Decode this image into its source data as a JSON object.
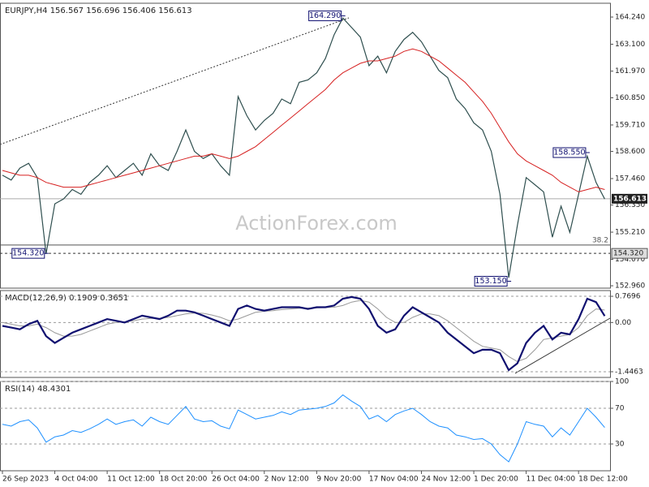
{
  "watermark": "ActionForex.com",
  "chart_data": [
    {
      "type": "line",
      "title": "EURJPY,H4  156.567 156.696 156.406 156.613",
      "ylim": [
        152.86,
        164.82
      ],
      "yticks": [
        {
          "value": 164.24,
          "label": "164.240"
        },
        {
          "value": 163.1,
          "label": "163.100"
        },
        {
          "value": 161.97,
          "label": "161.970"
        },
        {
          "value": 160.85,
          "label": "160.850"
        },
        {
          "value": 159.71,
          "label": "159.710"
        },
        {
          "value": 158.6,
          "label": "158.600"
        },
        {
          "value": 157.46,
          "label": "157.460"
        },
        {
          "value": 156.35,
          "label": "156.350"
        },
        {
          "value": 155.21,
          "label": "155.210"
        },
        {
          "value": 154.07,
          "label": "154.070"
        },
        {
          "value": 152.96,
          "label": "152.960"
        }
      ],
      "grid": false,
      "series": [
        {
          "color": "#2f4f4f",
          "width": 1.2,
          "values": [
            157.6,
            157.4,
            157.9,
            158.1,
            157.5,
            154.3,
            156.4,
            156.6,
            157.0,
            156.8,
            157.3,
            157.6,
            158.0,
            157.5,
            157.8,
            158.1,
            157.6,
            158.5,
            158.0,
            157.8,
            158.6,
            159.5,
            158.6,
            158.3,
            158.5,
            158.0,
            157.6,
            160.9,
            160.1,
            159.5,
            159.9,
            160.2,
            160.8,
            160.6,
            161.5,
            161.6,
            161.9,
            162.5,
            163.5,
            164.2,
            163.8,
            163.4,
            162.2,
            162.6,
            161.9,
            162.8,
            163.3,
            163.6,
            163.2,
            162.6,
            162.0,
            161.7,
            160.8,
            160.4,
            159.8,
            159.5,
            158.6,
            156.8,
            153.3,
            155.5,
            157.5,
            157.2,
            156.9,
            155.0,
            156.3,
            155.2,
            156.8,
            158.4,
            157.3,
            156.6
          ]
        },
        {
          "color": "#d62020",
          "width": 1,
          "values": [
            157.8,
            157.7,
            157.6,
            157.6,
            157.5,
            157.3,
            157.2,
            157.1,
            157.1,
            157.1,
            157.2,
            157.3,
            157.4,
            157.5,
            157.6,
            157.7,
            157.8,
            157.9,
            158.0,
            158.1,
            158.2,
            158.3,
            158.4,
            158.4,
            158.5,
            158.4,
            158.3,
            158.4,
            158.6,
            158.8,
            159.1,
            159.4,
            159.7,
            160.0,
            160.3,
            160.6,
            160.9,
            161.2,
            161.6,
            161.9,
            162.1,
            162.3,
            162.4,
            162.4,
            162.5,
            162.6,
            162.8,
            162.9,
            162.8,
            162.6,
            162.4,
            162.1,
            161.8,
            161.5,
            161.1,
            160.7,
            160.2,
            159.6,
            159.0,
            158.5,
            158.2,
            158.0,
            157.8,
            157.6,
            157.3,
            157.1,
            156.9,
            157.0,
            157.1,
            157.0
          ]
        }
      ],
      "annotations": [
        {
          "x": 39,
          "value": 164.29,
          "label": "164.290"
        },
        {
          "x": 5,
          "value": 154.32,
          "label": "154.320"
        },
        {
          "x": 58,
          "value": 153.15,
          "label": "153.150"
        },
        {
          "x": 67,
          "value": 158.55,
          "label": "158.550"
        }
      ],
      "levels": [
        {
          "value": 156.613,
          "label": "156.613",
          "style": "current"
        },
        {
          "value": 154.67,
          "label": "38.2",
          "style": "fib"
        },
        {
          "value": 154.32,
          "label": "154.320",
          "style": "dashed"
        }
      ]
    },
    {
      "type": "line",
      "title": "MACD(12,26,9) 0.1909 0.3651",
      "ylim": [
        -1.614,
        0.938
      ],
      "yticks": [
        0.7696,
        {
          "value": 0,
          "label": "0.00"
        },
        -1.4463
      ],
      "grid": true,
      "series": [
        {
          "color": "#999999",
          "width": 1,
          "values": [
            0,
            -0.05,
            -0.1,
            -0.1,
            -0.05,
            -0.15,
            -0.3,
            -0.4,
            -0.4,
            -0.35,
            -0.25,
            -0.15,
            -0.05,
            0.0,
            0.02,
            0.05,
            0.1,
            0.12,
            0.12,
            0.15,
            0.2,
            0.25,
            0.28,
            0.27,
            0.22,
            0.15,
            0.05,
            0.1,
            0.2,
            0.3,
            0.33,
            0.35,
            0.38,
            0.4,
            0.42,
            0.42,
            0.43,
            0.44,
            0.45,
            0.5,
            0.6,
            0.65,
            0.6,
            0.4,
            0.15,
            0.0,
            0.0,
            0.15,
            0.25,
            0.25,
            0.2,
            0.05,
            -0.15,
            -0.35,
            -0.55,
            -0.7,
            -0.75,
            -0.8,
            -1.0,
            -1.15,
            -1.05,
            -0.8,
            -0.5,
            -0.45,
            -0.4,
            -0.35,
            -0.15,
            0.2,
            0.4,
            0.3651
          ]
        },
        {
          "color": "#101070",
          "width": 2.2,
          "values": [
            -0.1,
            -0.15,
            -0.2,
            -0.05,
            0.05,
            -0.4,
            -0.6,
            -0.45,
            -0.3,
            -0.2,
            -0.1,
            0.0,
            0.1,
            0.05,
            0.0,
            0.1,
            0.2,
            0.15,
            0.1,
            0.2,
            0.35,
            0.35,
            0.3,
            0.2,
            0.1,
            0.0,
            -0.1,
            0.4,
            0.5,
            0.4,
            0.35,
            0.4,
            0.45,
            0.45,
            0.45,
            0.4,
            0.45,
            0.45,
            0.5,
            0.7,
            0.75,
            0.7,
            0.4,
            -0.1,
            -0.3,
            -0.2,
            0.2,
            0.45,
            0.3,
            0.15,
            0.0,
            -0.3,
            -0.5,
            -0.7,
            -0.9,
            -0.8,
            -0.8,
            -0.9,
            -1.4,
            -1.2,
            -0.6,
            -0.3,
            -0.1,
            -0.5,
            -0.3,
            -0.35,
            0.1,
            0.7,
            0.6,
            0.1909
          ]
        }
      ]
    },
    {
      "type": "line",
      "title": "RSI(14) 48.4301",
      "ylim": [
        0,
        100
      ],
      "yticks": [
        100,
        70,
        30
      ],
      "grid": true,
      "categories": [
        "26 Sep 2023",
        null,
        null,
        null,
        null,
        null,
        "4 Oct 04:00",
        null,
        null,
        null,
        null,
        null,
        "11 Oct 12:00",
        null,
        null,
        null,
        null,
        null,
        "18 Oct 20:00",
        null,
        null,
        null,
        null,
        null,
        "26 Oct 04:00",
        null,
        null,
        null,
        null,
        null,
        "2 Nov 12:00",
        null,
        null,
        null,
        null,
        null,
        "9 Nov 20:00",
        null,
        null,
        null,
        null,
        null,
        "17 Nov 04:00",
        null,
        null,
        null,
        null,
        null,
        "24 Nov 12:00",
        null,
        null,
        null,
        null,
        null,
        "1 Dec 20:00",
        null,
        null,
        null,
        null,
        null,
        "11 Dec 04:00",
        null,
        null,
        null,
        null,
        null,
        "18 Dec 12:00",
        null,
        null,
        null
      ],
      "series": [
        {
          "color": "#1e90ff",
          "width": 1,
          "values": [
            52,
            50,
            55,
            57,
            48,
            32,
            38,
            40,
            45,
            43,
            47,
            52,
            58,
            52,
            55,
            57,
            50,
            60,
            55,
            52,
            62,
            72,
            58,
            55,
            56,
            50,
            47,
            68,
            63,
            58,
            60,
            62,
            66,
            63,
            68,
            69,
            70,
            72,
            76,
            85,
            78,
            72,
            58,
            62,
            55,
            63,
            67,
            70,
            63,
            55,
            50,
            48,
            40,
            38,
            35,
            36,
            30,
            18,
            10,
            30,
            55,
            52,
            50,
            38,
            48,
            40,
            55,
            70,
            60,
            48.4301
          ]
        }
      ]
    }
  ]
}
